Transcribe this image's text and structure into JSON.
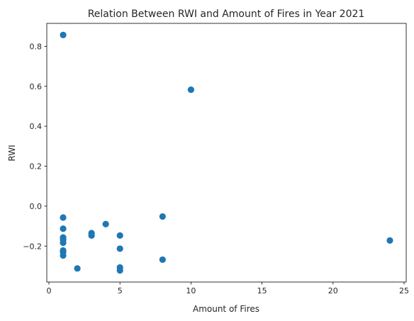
{
  "chart_data": {
    "type": "scatter",
    "title": "Relation Between RWI and Amount of Fires in Year 2021",
    "xlabel": "Amount of Fires",
    "ylabel": "RWI",
    "xlim": [
      -0.15,
      25.15
    ],
    "ylim": [
      -0.38,
      0.915
    ],
    "xticks": [
      0,
      5,
      10,
      15,
      20,
      25
    ],
    "xtick_labels": [
      "0",
      "5",
      "10",
      "15",
      "20",
      "25"
    ],
    "yticks": [
      -0.2,
      0.0,
      0.2,
      0.4,
      0.6,
      0.8
    ],
    "ytick_labels": [
      "−0.2",
      "0.0",
      "0.2",
      "0.4",
      "0.6",
      "0.8"
    ],
    "grid": false,
    "marker_color": "#1f77b4",
    "points": [
      {
        "x": 1,
        "y": 0.857
      },
      {
        "x": 1,
        "y": -0.057
      },
      {
        "x": 1,
        "y": -0.113
      },
      {
        "x": 1,
        "y": -0.157
      },
      {
        "x": 1,
        "y": -0.168
      },
      {
        "x": 1,
        "y": -0.183
      },
      {
        "x": 1,
        "y": -0.222
      },
      {
        "x": 1,
        "y": -0.23
      },
      {
        "x": 1,
        "y": -0.247
      },
      {
        "x": 2,
        "y": -0.312
      },
      {
        "x": 3,
        "y": -0.135
      },
      {
        "x": 3,
        "y": -0.147
      },
      {
        "x": 4,
        "y": -0.09
      },
      {
        "x": 5,
        "y": -0.147
      },
      {
        "x": 5,
        "y": -0.213
      },
      {
        "x": 5,
        "y": -0.307
      },
      {
        "x": 5,
        "y": -0.322
      },
      {
        "x": 8,
        "y": -0.052
      },
      {
        "x": 8,
        "y": -0.268
      },
      {
        "x": 10,
        "y": 0.583
      },
      {
        "x": 24,
        "y": -0.172
      }
    ]
  }
}
